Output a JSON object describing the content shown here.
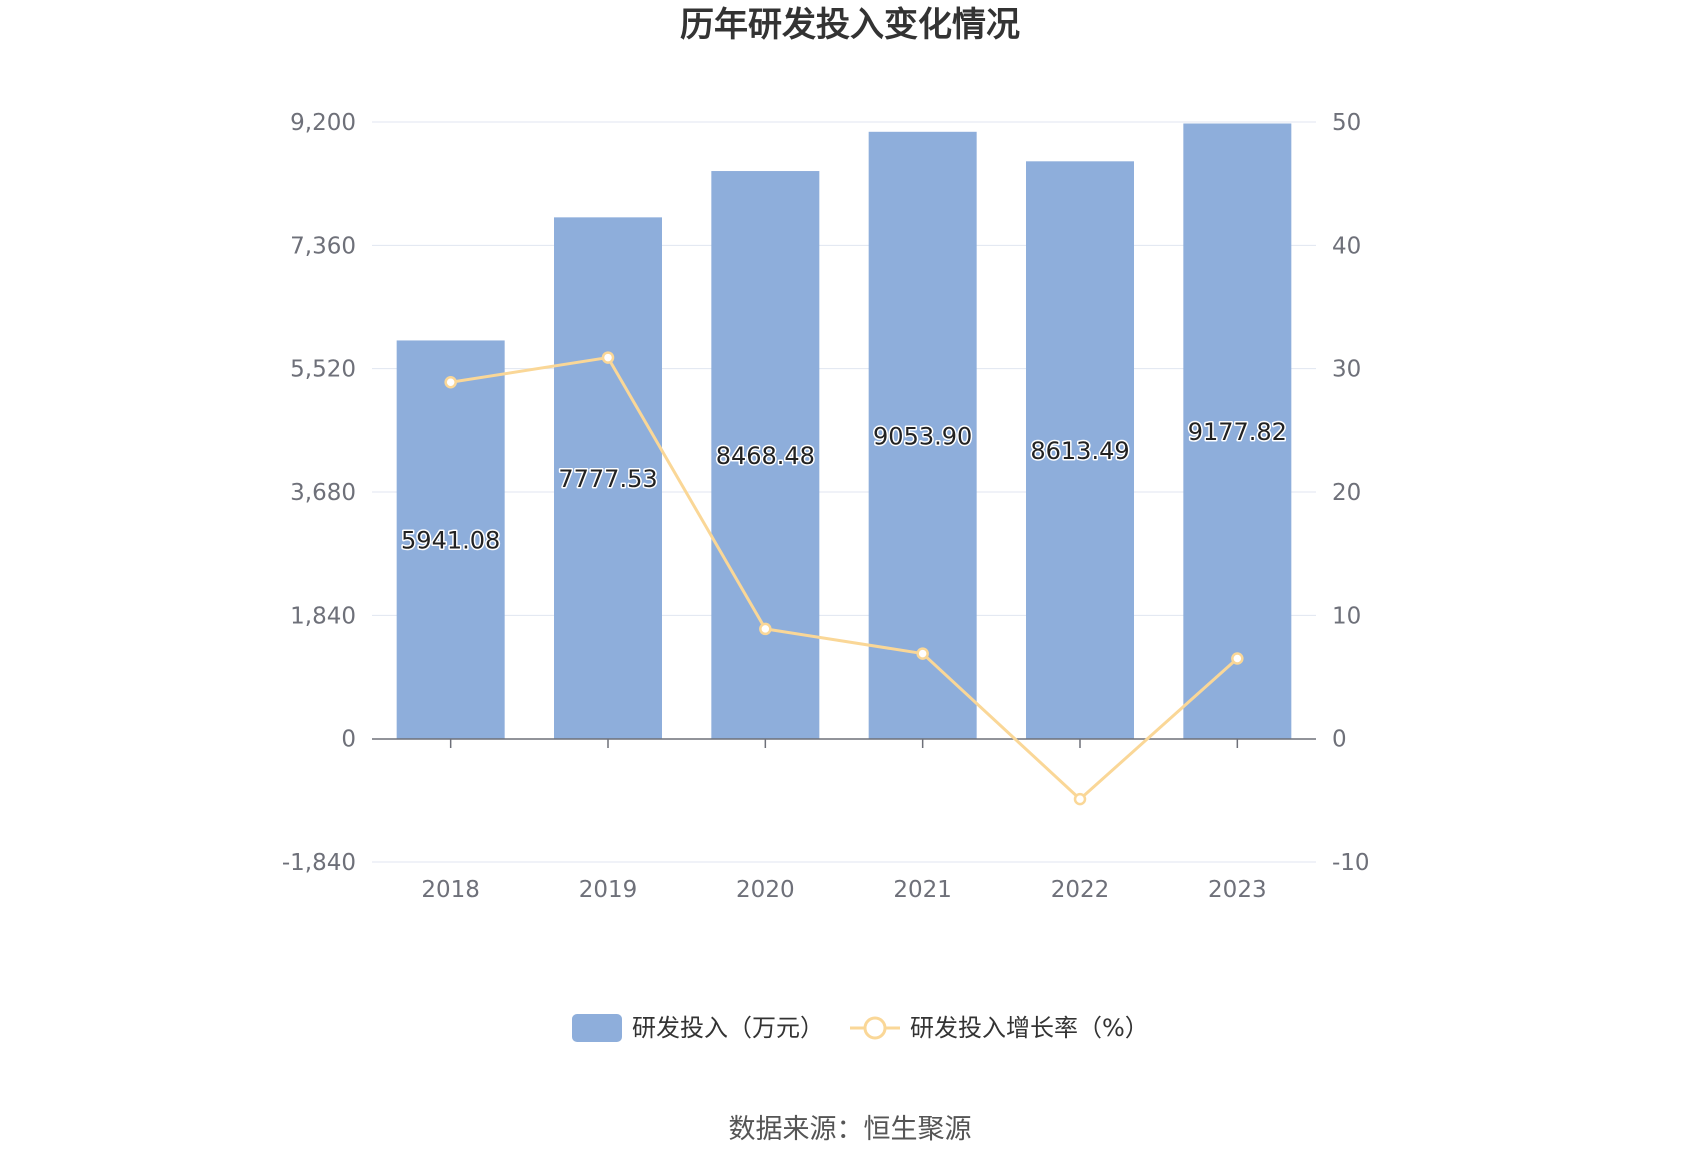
{
  "chart_data": {
    "type": "bar",
    "title": "历年研发投入变化情况",
    "categories": [
      "2018",
      "2019",
      "2020",
      "2021",
      "2022",
      "2023"
    ],
    "series": [
      {
        "name": "研发投入（万元）",
        "type": "bar",
        "axis": "left",
        "color": "#8eaedb",
        "values": [
          5941.08,
          7777.53,
          8468.48,
          9053.9,
          8613.49,
          9177.82
        ],
        "labels": [
          "5941.08",
          "7777.53",
          "8468.48",
          "9053.90",
          "8613.49",
          "9177.82"
        ]
      },
      {
        "name": "研发投入增长率（%）",
        "type": "line",
        "axis": "right",
        "color": "#fad797",
        "values": [
          28.9,
          30.9,
          8.9,
          6.9,
          -4.9,
          6.5
        ]
      }
    ],
    "y_left": {
      "min": -1840,
      "max": 9200,
      "ticks": [
        "-1,840",
        "0",
        "1,840",
        "3,680",
        "5,520",
        "7,360",
        "9,200"
      ]
    },
    "y_right": {
      "min": -10,
      "max": 50,
      "ticks": [
        "-10",
        "0",
        "10",
        "20",
        "30",
        "40",
        "50"
      ]
    },
    "grid": true,
    "legend_position": "bottom-center"
  },
  "source": "数据来源：恒生聚源"
}
